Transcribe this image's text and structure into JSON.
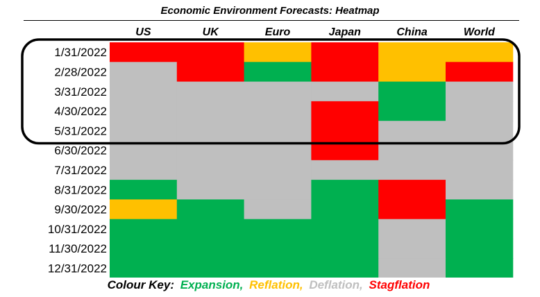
{
  "chart_data": {
    "type": "heatmap",
    "title": "Economic Environment Forecasts: Heatmap",
    "columns": [
      "US",
      "UK",
      "Euro",
      "Japan",
      "China",
      "World"
    ],
    "rows": [
      "1/31/2022",
      "2/28/2022",
      "3/31/2022",
      "4/30/2022",
      "5/31/2022",
      "6/30/2022",
      "7/31/2022",
      "8/31/2022",
      "9/30/2022",
      "10/31/2022",
      "11/30/2022",
      "12/31/2022"
    ],
    "values": [
      [
        "Stagflation",
        "Stagflation",
        "Reflation",
        "Stagflation",
        "Reflation",
        "Reflation"
      ],
      [
        "Deflation",
        "Stagflation",
        "Expansion",
        "Stagflation",
        "Reflation",
        "Stagflation"
      ],
      [
        "Deflation",
        "Deflation",
        "Deflation",
        "Deflation",
        "Expansion",
        "Deflation"
      ],
      [
        "Deflation",
        "Deflation",
        "Deflation",
        "Stagflation",
        "Expansion",
        "Deflation"
      ],
      [
        "Deflation",
        "Deflation",
        "Deflation",
        "Stagflation",
        "Deflation",
        "Deflation"
      ],
      [
        "Deflation",
        "Deflation",
        "Deflation",
        "Stagflation",
        "Deflation",
        "Deflation"
      ],
      [
        "Deflation",
        "Deflation",
        "Deflation",
        "Deflation",
        "Deflation",
        "Deflation"
      ],
      [
        "Expansion",
        "Deflation",
        "Deflation",
        "Expansion",
        "Stagflation",
        "Deflation"
      ],
      [
        "Reflation",
        "Expansion",
        "Deflation",
        "Expansion",
        "Stagflation",
        "Expansion"
      ],
      [
        "Expansion",
        "Expansion",
        "Expansion",
        "Expansion",
        "Deflation",
        "Expansion"
      ],
      [
        "Expansion",
        "Expansion",
        "Expansion",
        "Expansion",
        "Deflation",
        "Expansion"
      ],
      [
        "Expansion",
        "Expansion",
        "Expansion",
        "Expansion",
        "Deflation",
        "Expansion"
      ]
    ],
    "colors": {
      "Expansion": "#00b050",
      "Reflation": "#ffc000",
      "Deflation": "#bfbfbf",
      "Stagflation": "#ff0000"
    },
    "highlight_rows": [
      "1/31/2022",
      "5/31/2022"
    ]
  },
  "key": {
    "label": "Colour Key:",
    "items": [
      {
        "text": "Expansion,",
        "color": "#00b050"
      },
      {
        "text": "Reflation,",
        "color": "#ffc000"
      },
      {
        "text": "Deflation,",
        "color": "#bfbfbf"
      },
      {
        "text": "Stagflation",
        "color": "#ff0000"
      }
    ]
  }
}
